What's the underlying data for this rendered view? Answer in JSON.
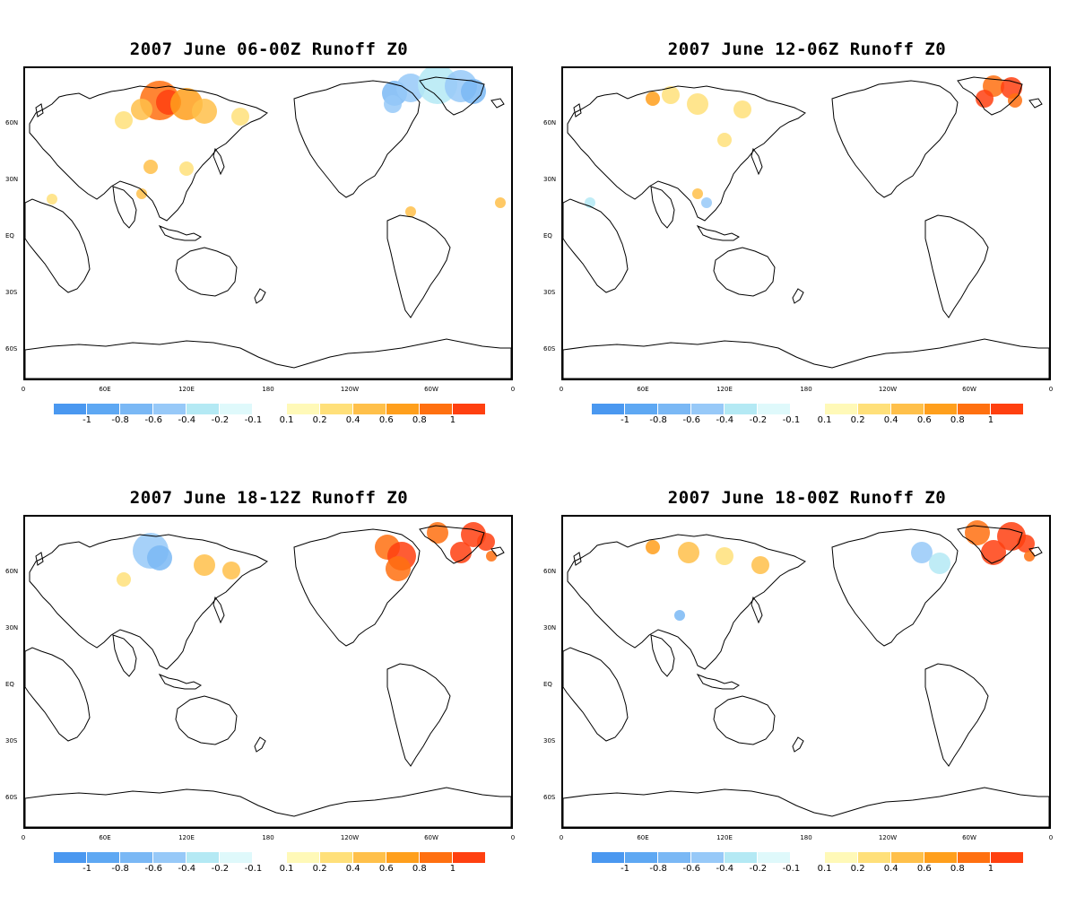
{
  "panels": [
    {
      "title": "2007 June 06-00Z Runoff Z0",
      "scenario": "panel1"
    },
    {
      "title": "2007 June 12-06Z Runoff Z0",
      "scenario": "panel2"
    },
    {
      "title": "2007 June 18-12Z Runoff Z0",
      "scenario": "panel3"
    },
    {
      "title": "2007 June 18-00Z Runoff Z0",
      "scenario": "panel4"
    }
  ],
  "lat_labels": [
    "60N",
    "30N",
    "EQ",
    "30S",
    "60S"
  ],
  "lon_labels": [
    "0",
    "60E",
    "120E",
    "180",
    "120W",
    "60W",
    "0"
  ],
  "colorbar": {
    "ticks": [
      "-1",
      "-0.8",
      "-0.6",
      "-0.4",
      "-0.2",
      "-0.1",
      "0.1",
      "0.2",
      "0.4",
      "0.6",
      "0.8",
      "1"
    ],
    "colors": [
      "#4a98f0",
      "#5ea8f3",
      "#7ab8f5",
      "#97c9f8",
      "#b4e9f4",
      "#dff9fb",
      "#ffffff",
      "#fff9b8",
      "#ffe07a",
      "#ffc04a",
      "#ff9f1c",
      "#ff7010",
      "#ff4010"
    ]
  }
}
